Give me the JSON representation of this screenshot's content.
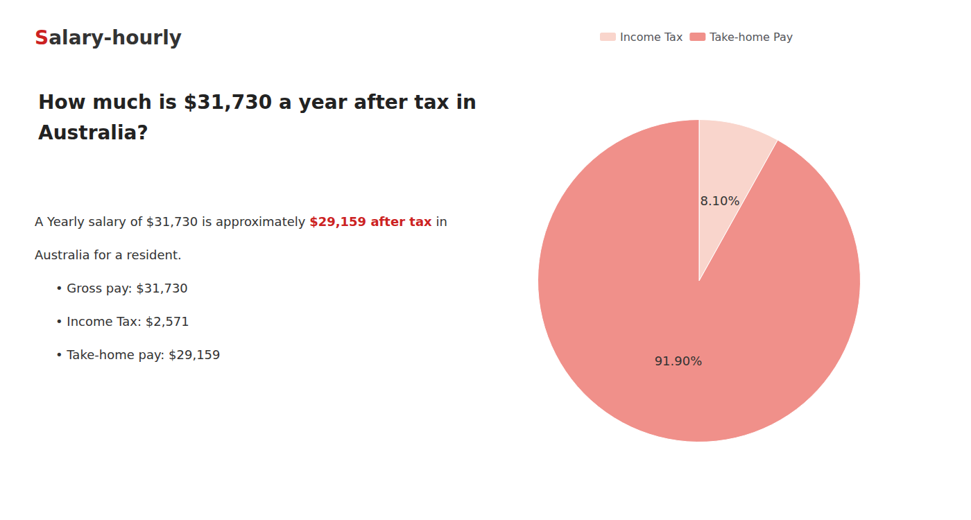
{
  "chart_data": {
    "type": "pie",
    "title": [
      "How much is $31,730 a year after tax in",
      "Australia?"
    ],
    "annotations": [
      [
        {
          "text": "S",
          "color": "#cc2222"
        },
        {
          "text": "alary-hourly"
        }
      ],
      [
        {
          "text": "A Yearly salary of $31,730 is approximately "
        },
        {
          "text": "$29,159 after tax",
          "color": "#cc2222"
        },
        {
          "text": " in"
        }
      ],
      [
        {
          "text": "Australia for a resident."
        }
      ],
      [
        {
          "text": "• Gross pay: $31,730"
        }
      ],
      [
        {
          "text": "• Income Tax: $2,571"
        }
      ],
      [
        {
          "text": "• Take-home pay: $29,159"
        }
      ]
    ],
    "categories": [
      "Income Tax",
      "Take-home Pay"
    ],
    "values": [
      8.1,
      91.9
    ],
    "value_labels": [
      "8.10%",
      "91.90%"
    ],
    "colors": [
      "#f9d5cc",
      "#f0908a"
    ],
    "legend": "top",
    "data_labels": true
  }
}
